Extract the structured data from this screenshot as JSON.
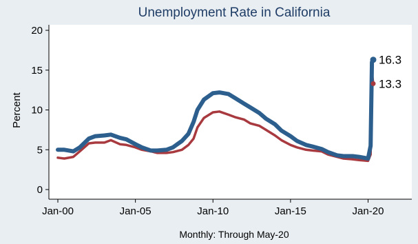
{
  "chart_data": {
    "type": "line",
    "title": "Unemployment Rate in California",
    "ylabel": "Percent",
    "xlabel": "",
    "note": "Monthly: Through May-20",
    "x_range": [
      "2000-01",
      "2020-05"
    ],
    "ylim": [
      0,
      20
    ],
    "y_ticks": [
      "0",
      "5",
      "10",
      "15",
      "20"
    ],
    "x_ticks": [
      {
        "label": "Jan-00",
        "date": "2000-01"
      },
      {
        "label": "Jan-05",
        "date": "2005-01"
      },
      {
        "label": "Jan-10",
        "date": "2010-01"
      },
      {
        "label": "Jan-15",
        "date": "2015-01"
      },
      {
        "label": "Jan-20",
        "date": "2020-01"
      }
    ],
    "grid": false,
    "legend": "none",
    "series": [
      {
        "color": "#2c5f8d",
        "end_label": "16.3",
        "points": [
          [
            "2000-01",
            5.0
          ],
          [
            "2000-06",
            5.0
          ],
          [
            "2001-01",
            4.8
          ],
          [
            "2001-06",
            5.3
          ],
          [
            "2002-01",
            6.4
          ],
          [
            "2002-06",
            6.7
          ],
          [
            "2003-01",
            6.8
          ],
          [
            "2003-06",
            6.9
          ],
          [
            "2004-01",
            6.5
          ],
          [
            "2004-06",
            6.3
          ],
          [
            "2005-01",
            5.7
          ],
          [
            "2005-06",
            5.3
          ],
          [
            "2006-01",
            4.9
          ],
          [
            "2006-06",
            4.9
          ],
          [
            "2007-01",
            5.0
          ],
          [
            "2007-06",
            5.3
          ],
          [
            "2008-01",
            6.1
          ],
          [
            "2008-06",
            7.0
          ],
          [
            "2008-10",
            8.5
          ],
          [
            "2009-01",
            10.0
          ],
          [
            "2009-06",
            11.3
          ],
          [
            "2010-01",
            12.1
          ],
          [
            "2010-06",
            12.2
          ],
          [
            "2011-01",
            12.0
          ],
          [
            "2011-06",
            11.5
          ],
          [
            "2012-01",
            10.8
          ],
          [
            "2012-06",
            10.3
          ],
          [
            "2013-01",
            9.6
          ],
          [
            "2013-06",
            8.9
          ],
          [
            "2014-01",
            8.2
          ],
          [
            "2014-06",
            7.4
          ],
          [
            "2015-01",
            6.7
          ],
          [
            "2015-06",
            6.1
          ],
          [
            "2016-01",
            5.6
          ],
          [
            "2016-06",
            5.4
          ],
          [
            "2017-01",
            5.1
          ],
          [
            "2017-06",
            4.7
          ],
          [
            "2018-01",
            4.3
          ],
          [
            "2018-06",
            4.2
          ],
          [
            "2019-01",
            4.2
          ],
          [
            "2019-06",
            4.1
          ],
          [
            "2020-01",
            3.9
          ],
          [
            "2020-03",
            5.5
          ],
          [
            "2020-04",
            16.0
          ],
          [
            "2020-05",
            16.3
          ]
        ]
      },
      {
        "color": "#a83a3f",
        "end_label": "13.3",
        "points": [
          [
            "2000-01",
            4.0
          ],
          [
            "2000-06",
            3.9
          ],
          [
            "2001-01",
            4.1
          ],
          [
            "2001-06",
            4.8
          ],
          [
            "2002-01",
            5.8
          ],
          [
            "2002-06",
            5.9
          ],
          [
            "2003-01",
            5.9
          ],
          [
            "2003-06",
            6.2
          ],
          [
            "2004-01",
            5.7
          ],
          [
            "2004-06",
            5.6
          ],
          [
            "2005-01",
            5.3
          ],
          [
            "2005-06",
            5.0
          ],
          [
            "2006-01",
            4.8
          ],
          [
            "2006-06",
            4.6
          ],
          [
            "2007-01",
            4.6
          ],
          [
            "2007-06",
            4.7
          ],
          [
            "2008-01",
            5.0
          ],
          [
            "2008-06",
            5.6
          ],
          [
            "2008-10",
            6.4
          ],
          [
            "2009-01",
            7.8
          ],
          [
            "2009-06",
            9.0
          ],
          [
            "2010-01",
            9.7
          ],
          [
            "2010-06",
            9.8
          ],
          [
            "2011-01",
            9.4
          ],
          [
            "2011-06",
            9.1
          ],
          [
            "2012-01",
            8.8
          ],
          [
            "2012-06",
            8.3
          ],
          [
            "2013-01",
            8.0
          ],
          [
            "2013-06",
            7.5
          ],
          [
            "2014-01",
            6.8
          ],
          [
            "2014-06",
            6.2
          ],
          [
            "2015-01",
            5.6
          ],
          [
            "2015-06",
            5.3
          ],
          [
            "2016-01",
            5.0
          ],
          [
            "2016-06",
            4.9
          ],
          [
            "2017-01",
            4.8
          ],
          [
            "2017-06",
            4.4
          ],
          [
            "2018-01",
            4.1
          ],
          [
            "2018-06",
            3.9
          ],
          [
            "2019-01",
            3.8
          ],
          [
            "2019-06",
            3.7
          ],
          [
            "2020-01",
            3.6
          ],
          [
            "2020-03",
            4.4
          ],
          [
            "2020-04",
            14.7
          ],
          [
            "2020-05",
            13.3
          ]
        ]
      }
    ]
  }
}
